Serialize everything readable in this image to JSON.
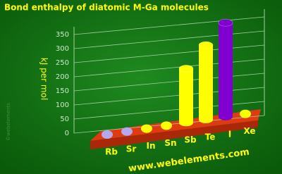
{
  "chart_data": {
    "type": "bar3d",
    "title": "Bond enthalpy of diatomic M-Ga molecules",
    "y_label": "kJ per mol",
    "footer": "www.webelements.com",
    "watermark": "©webelements",
    "categories": [
      "Rb",
      "Sr",
      "In",
      "Sn",
      "Sb",
      "Te",
      "I",
      "Xe"
    ],
    "values": [
      null,
      null,
      0,
      0,
      192,
      265,
      334,
      0
    ],
    "colors": [
      "#b4a8f0",
      "#b4a8f0",
      "#ffff00",
      "#ffff00",
      "#ffff00",
      "#ffff00",
      "#8000d0",
      "#ffff00"
    ],
    "ylim": [
      0,
      350
    ],
    "yticks": [
      0,
      50,
      100,
      150,
      200,
      250,
      300,
      350
    ],
    "grid": true
  }
}
